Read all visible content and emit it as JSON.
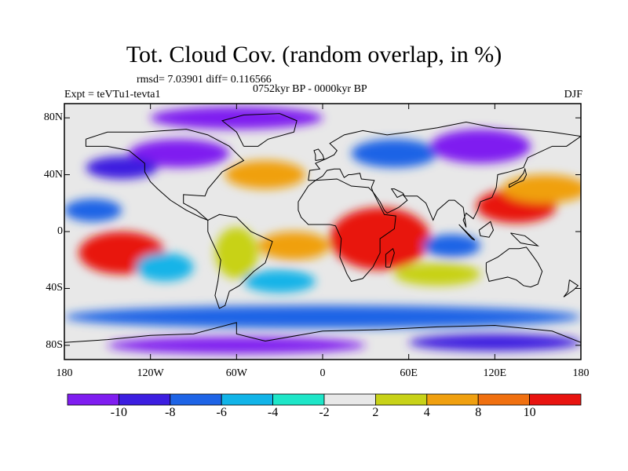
{
  "figure": {
    "title": "Tot. Cloud Cov. (random overlap, in %)",
    "stats": "rmsd= 7.03901 diff= 0.116566",
    "experiment": "Expt = teVTu1-tevta1",
    "period": "0752kyr BP - 0000kyr BP",
    "season": "DJF"
  },
  "map": {
    "lat_labels": [
      {
        "label": "80N",
        "lat": 80
      },
      {
        "label": "40N",
        "lat": 40
      },
      {
        "label": "0",
        "lat": 0
      },
      {
        "label": "40S",
        "lat": -40
      },
      {
        "label": "80S",
        "lat": -80
      }
    ],
    "lon_labels": [
      {
        "label": "180",
        "lon": -180
      },
      {
        "label": "120W",
        "lon": -120
      },
      {
        "label": "60W",
        "lon": -60
      },
      {
        "label": "0",
        "lon": 0
      },
      {
        "label": "60E",
        "lon": 60
      },
      {
        "label": "120E",
        "lon": 120
      },
      {
        "label": "180",
        "lon": 180
      }
    ],
    "lat_range": [
      -90,
      90
    ],
    "lon_range": [
      -180,
      180
    ],
    "anomaly_regions": [
      {
        "name": "tropical-africa-high",
        "lon": 40,
        "lat": -5,
        "rlon": 35,
        "rlat": 22,
        "level": 10
      },
      {
        "name": "east-asia-high",
        "lon": 135,
        "lat": 18,
        "rlon": 28,
        "rlat": 12,
        "level": 10
      },
      {
        "name": "north-pacific-high",
        "lon": 155,
        "lat": 30,
        "rlon": 30,
        "rlat": 10,
        "level": 8
      },
      {
        "name": "south-pacific-high",
        "lon": -140,
        "lat": -15,
        "rlon": 30,
        "rlat": 15,
        "level": 10
      },
      {
        "name": "atlantic-tropics-high",
        "lon": -20,
        "lat": -10,
        "rlon": 25,
        "rlat": 10,
        "level": 8
      },
      {
        "name": "north-atlantic-high",
        "lon": -40,
        "lat": 40,
        "rlon": 28,
        "rlat": 10,
        "level": 8
      },
      {
        "name": "south-america-high",
        "lon": -60,
        "lat": -15,
        "rlon": 15,
        "rlat": 18,
        "level": 4
      },
      {
        "name": "south-indian-high",
        "lon": 80,
        "lat": -30,
        "rlon": 30,
        "rlat": 8,
        "level": 4
      },
      {
        "name": "east-pacific-low",
        "lon": -110,
        "lat": -25,
        "rlon": 20,
        "rlat": 10,
        "level": -4
      },
      {
        "name": "north-america-low",
        "lon": -100,
        "lat": 55,
        "rlon": 35,
        "rlat": 10,
        "level": -10
      },
      {
        "name": "pacific-midlat-low",
        "lon": -140,
        "lat": 45,
        "rlon": 25,
        "rlat": 8,
        "level": -8
      },
      {
        "name": "arctic-low",
        "lon": -60,
        "lat": 80,
        "rlon": 60,
        "rlat": 8,
        "level": -10
      },
      {
        "name": "europe-low",
        "lon": 50,
        "lat": 55,
        "rlon": 30,
        "rlat": 10,
        "level": -6
      },
      {
        "name": "siberia-low",
        "lon": 110,
        "lat": 60,
        "rlon": 35,
        "rlat": 12,
        "level": -10
      },
      {
        "name": "north-pacific-low",
        "lon": -160,
        "lat": 15,
        "rlon": 20,
        "rlat": 8,
        "level": -6
      },
      {
        "name": "indian-ocean-low",
        "lon": 90,
        "lat": -10,
        "rlon": 20,
        "rlat": 8,
        "level": -6
      },
      {
        "name": "south-atlantic-low",
        "lon": -30,
        "lat": -35,
        "rlon": 25,
        "rlat": 8,
        "level": -4
      },
      {
        "name": "southern-ocean-low",
        "lon": 0,
        "lat": -60,
        "rlon": 180,
        "rlat": 8,
        "level": -6
      },
      {
        "name": "antarctic-low",
        "lon": -60,
        "lat": -80,
        "rlon": 90,
        "rlat": 6,
        "level": -10
      },
      {
        "name": "antarctic-low-east",
        "lon": 120,
        "lat": -78,
        "rlon": 60,
        "rlat": 6,
        "level": -8
      }
    ]
  },
  "colorbar": {
    "labels": [
      "-10",
      "-8",
      "-6",
      "-4",
      "-2",
      "2",
      "4",
      "8",
      "10"
    ],
    "colors": [
      "#7f1df0",
      "#3c1ee0",
      "#1e64e6",
      "#12b4e8",
      "#1ee6c8",
      "#e8e8e8",
      "#c8d218",
      "#f0a010",
      "#f07010",
      "#e81410"
    ]
  }
}
